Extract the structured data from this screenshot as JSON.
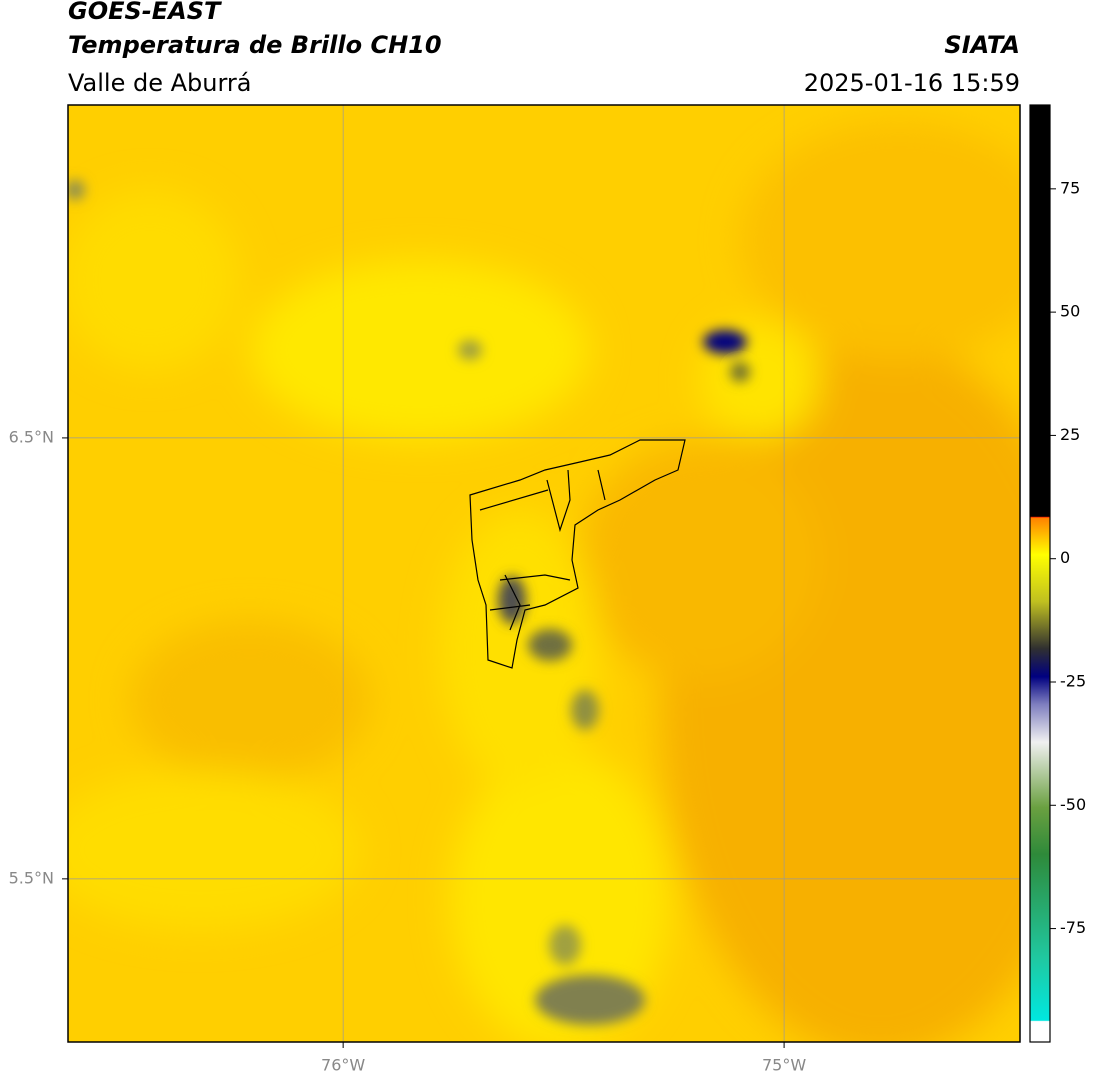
{
  "header": {
    "title": "GOES-EAST",
    "subtitle": "Temperatura de Brillo CH10",
    "region": "Valle de Aburrá",
    "source": "SIATA",
    "timestamp": "2025-01-16 15:59"
  },
  "map": {
    "xlim": [
      -76.624,
      -74.465
    ],
    "ylim": [
      5.13,
      7.255
    ],
    "xticks": [
      {
        "value": -76,
        "label": "76°W"
      },
      {
        "value": -75,
        "label": "75°W"
      }
    ],
    "yticks": [
      {
        "value": 6.5,
        "label": "6.5°N"
      },
      {
        "value": 5.5,
        "label": "5.5°N"
      }
    ],
    "grid": true
  },
  "colorbar": {
    "lim": [
      -98,
      92
    ],
    "ticks": [
      75,
      50,
      25,
      0,
      -25,
      -50,
      -75
    ]
  }
}
